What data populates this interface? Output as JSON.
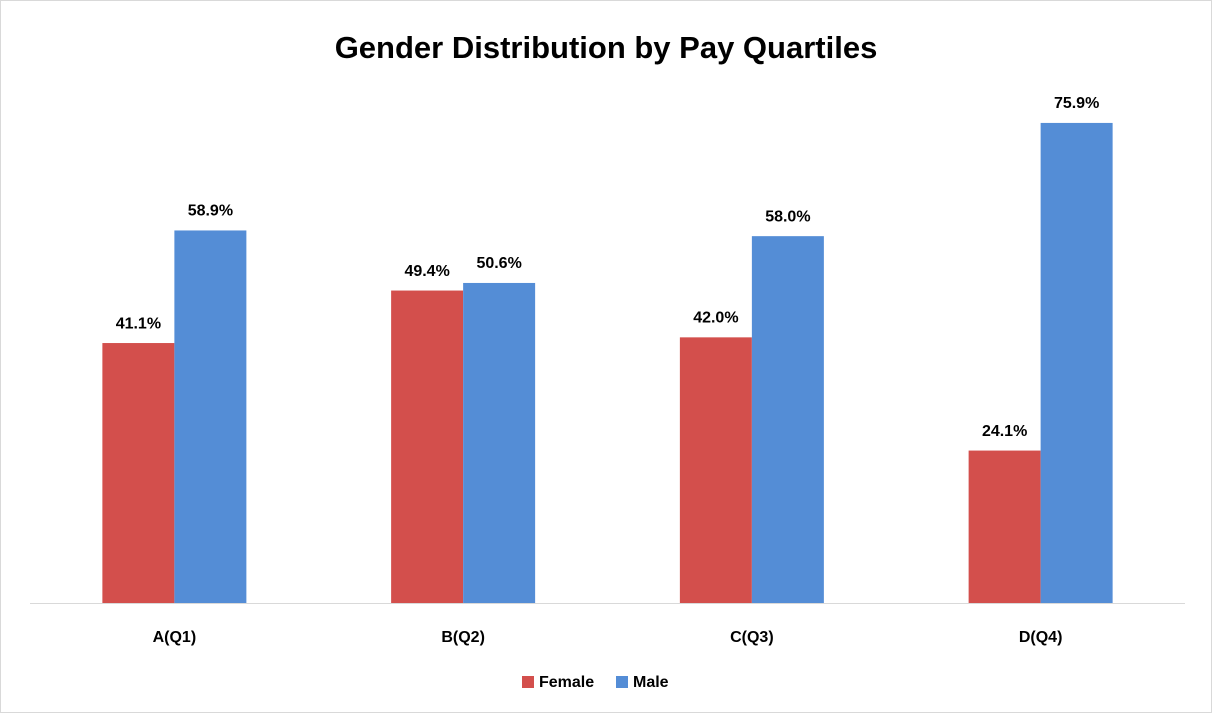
{
  "chart_data": {
    "type": "bar",
    "title": "Gender Distribution by Pay Quartiles",
    "categories": [
      "A(Q1)",
      "B(Q2)",
      "C(Q3)",
      "D(Q4)"
    ],
    "series": [
      {
        "name": "Female",
        "color": "#d34f4c",
        "values": [
          41.1,
          49.4,
          42.0,
          24.1
        ],
        "value_labels": [
          "41.1%",
          "49.4%",
          "42.0%",
          "24.1%"
        ]
      },
      {
        "name": "Male",
        "color": "#548dd6",
        "values": [
          58.9,
          50.6,
          58.0,
          75.9
        ],
        "value_labels": [
          "58.9%",
          "50.6%",
          "58.0%",
          "75.9%"
        ]
      }
    ],
    "ylim": [
      0,
      80
    ],
    "legend": "bottom"
  }
}
